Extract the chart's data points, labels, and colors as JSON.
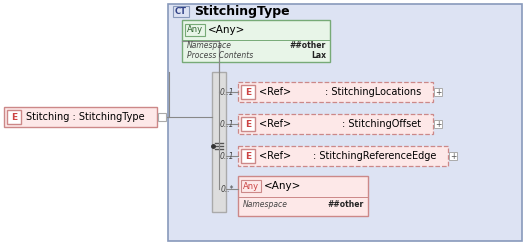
{
  "fig_w": 5.27,
  "fig_h": 2.45,
  "dpi": 100,
  "main_bg": "#dde3f3",
  "main_border": "#8899bb",
  "ct_bg": "#dde3f3",
  "ct_border": "#8899bb",
  "ct_text": "CT",
  "title_text": "StitchingType",
  "any_top_bg": "#e8f5e8",
  "any_top_border": "#77aa77",
  "any_top_badge_text": "Any",
  "any_top_text": "<Any>",
  "any_top_rows": [
    [
      "Namespace",
      "##other"
    ],
    [
      "Process Contents",
      "Lax"
    ]
  ],
  "seq_bar_bg": "#dddddd",
  "seq_bar_border": "#aaaaaa",
  "left_el_bg": "#fde8e8",
  "left_el_border": "#cc8888",
  "left_el_e_text": "E",
  "left_el_text": "Stitching : StitchingType",
  "elem_bg": "#fde8e8",
  "elem_border": "#cc8888",
  "elem_dashed": true,
  "elements": [
    {
      "mult": "0..1",
      "badge": "E",
      "ref": "<Ref>",
      "name": ": StitchingLocations",
      "plus": true
    },
    {
      "mult": "0..1",
      "badge": "E",
      "ref": "<Ref>",
      "name": ": StitchingOffset",
      "plus": true
    },
    {
      "mult": "0..1",
      "badge": "E",
      "ref": "<Ref>",
      "name": ": StitchingReferenceEdge",
      "plus": true
    }
  ],
  "any_bot_bg": "#fde8e8",
  "any_bot_border": "#cc8888",
  "any_bot_badge_text": "Any",
  "any_bot_text": "<Any>",
  "any_bot_mult": "0..*",
  "any_bot_rows": [
    [
      "Namespace",
      "##other"
    ]
  ],
  "line_color": "#888888",
  "text_dark": "#222222",
  "text_italic_color": "#444444"
}
